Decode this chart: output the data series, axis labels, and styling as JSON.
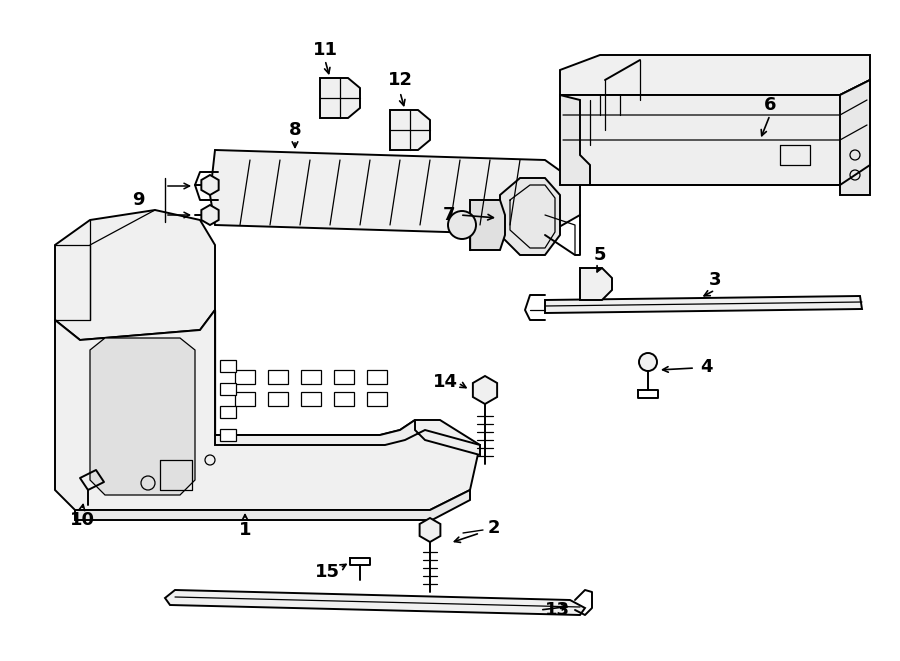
{
  "bg_color": "#ffffff",
  "line_color": "#000000",
  "fig_width": 9.0,
  "fig_height": 6.61,
  "dpi": 100,
  "lw_main": 1.4,
  "lw_thin": 0.9,
  "label_fontsize": 12
}
